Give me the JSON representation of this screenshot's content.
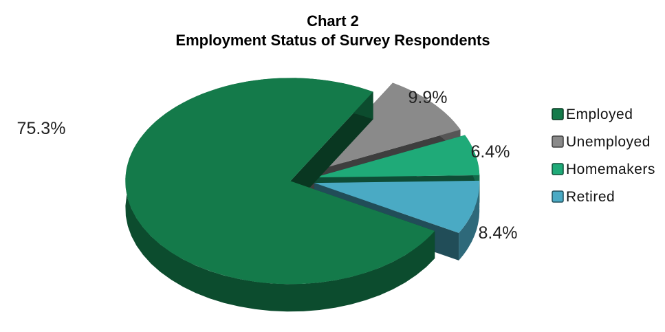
{
  "chart_data": {
    "type": "pie",
    "title": "Chart 2",
    "subtitle": "Employment Status of Survey Respondents",
    "categories": [
      "Employed",
      "Unemployed",
      "Homemakers",
      "Retired"
    ],
    "values": [
      75.3,
      9.9,
      6.4,
      8.4
    ],
    "labels": [
      "75.3%",
      "9.9%",
      "6.4%",
      "8.4%"
    ],
    "colors": [
      "#147a4a",
      "#8a8a8a",
      "#1faa78",
      "#4aaac4"
    ],
    "exploded": true,
    "style": "3d",
    "legend_position": "right"
  }
}
